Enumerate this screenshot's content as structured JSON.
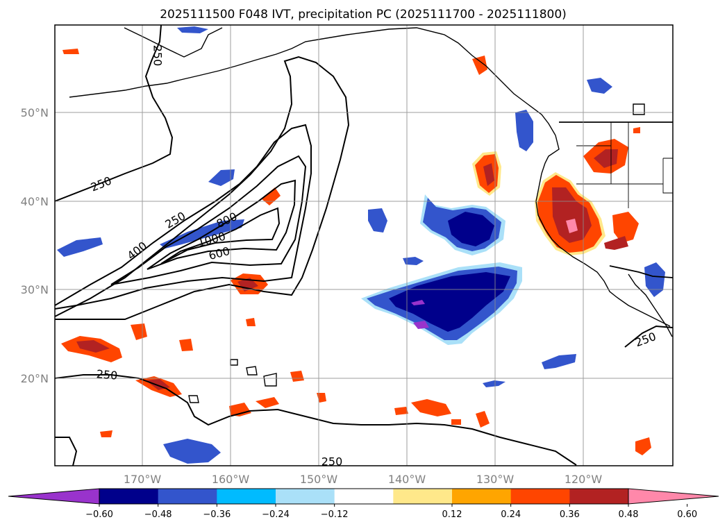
{
  "title": "2025111500 F048 IVT, precipitation PC (2025111700 - 2025111800)",
  "map": {
    "lat_labels": [
      "50°N",
      "40°N",
      "30°N",
      "20°N"
    ],
    "lon_labels": [
      "170°W",
      "160°W",
      "150°W",
      "140°W",
      "130°W",
      "120°W"
    ]
  },
  "ivt_contours": {
    "levels": [
      "250",
      "400",
      "600",
      "800",
      "1000"
    ],
    "labels": {
      "c250_topleft": "250",
      "c250_left": "250",
      "c250_inner": "250",
      "c400": "400",
      "c600": "600",
      "c800": "800",
      "c1000": "1000",
      "c250_south": "250",
      "c250_bottom": "250",
      "c250_east": "250"
    }
  },
  "colorbar": {
    "ticks": [
      "−0.60",
      "−0.48",
      "−0.36",
      "−0.24",
      "−0.12",
      "0.12",
      "0.24",
      "0.36",
      "0.48",
      "0.60"
    ],
    "colors": [
      "#9933cc",
      "#00008b",
      "#3355cc",
      "#00bbff",
      "#aae0f8",
      "#ffffff",
      "#ffe88a",
      "#ffa500",
      "#ff4500",
      "#b22222",
      "#ff88aa"
    ]
  },
  "colors": {
    "neg_outer": "#aae0f8",
    "neg_mid": "#3355cc",
    "neg_strong": "#00008b",
    "neg_extreme": "#9933cc",
    "pos_outer": "#ffe88a",
    "pos_mid": "#ff4500",
    "pos_strong": "#b22222",
    "pos_extreme": "#ff88aa"
  }
}
